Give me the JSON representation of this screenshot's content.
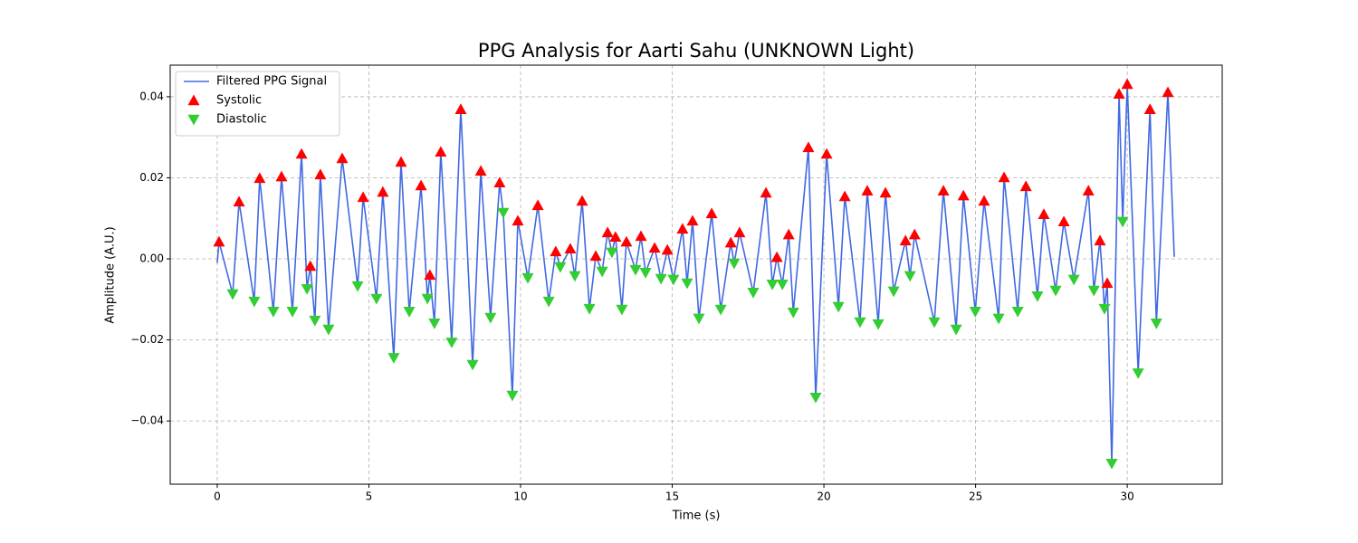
{
  "chart_data": {
    "type": "line",
    "title": "PPG Analysis for Aarti Sahu (UNKNOWN Light)",
    "xlabel": "Time (s)",
    "ylabel": "Amplitude (A.U.)",
    "xlim": [
      -1.55,
      33.13
    ],
    "ylim": [
      -0.0556,
      0.0478
    ],
    "xticks": [
      0,
      5,
      10,
      15,
      20,
      25,
      30
    ],
    "yticks": [
      {
        "value": -0.04,
        "label": "−0.04"
      },
      {
        "value": -0.02,
        "label": "−0.02"
      },
      {
        "value": 0,
        "label": "0.00"
      },
      0.02,
      0.04
    ],
    "grid": true,
    "legend": "upper left",
    "series": [
      {
        "name": "Filtered PPG Signal",
        "type": "line",
        "color": "#4169e1",
        "x": [
          0,
          0.06,
          0.51,
          0.72,
          1.22,
          1.4,
          1.85,
          2.12,
          2.48,
          2.78,
          2.96,
          3.07,
          3.22,
          3.4,
          3.67,
          4.12,
          4.63,
          4.81,
          5.25,
          5.46,
          5.82,
          6.06,
          6.33,
          6.72,
          6.93,
          7.01,
          7.16,
          7.37,
          7.73,
          8.03,
          8.42,
          8.69,
          9.01,
          9.31,
          9.43,
          9.73,
          9.91,
          10.24,
          10.57,
          10.93,
          11.16,
          11.31,
          11.64,
          11.79,
          12.03,
          12.27,
          12.48,
          12.69,
          12.87,
          13.01,
          13.13,
          13.34,
          13.49,
          13.79,
          13.97,
          14.12,
          14.42,
          14.63,
          14.84,
          15.04,
          15.34,
          15.49,
          15.67,
          15.88,
          16.3,
          16.6,
          16.93,
          17.04,
          17.22,
          17.67,
          18.09,
          18.3,
          18.45,
          18.63,
          18.84,
          18.99,
          19.49,
          19.73,
          20.09,
          20.48,
          20.69,
          21.19,
          21.43,
          21.79,
          22.03,
          22.3,
          22.69,
          22.84,
          22.99,
          23.64,
          23.94,
          24.36,
          24.6,
          24.99,
          25.28,
          25.76,
          25.94,
          26.39,
          26.66,
          27.04,
          27.25,
          27.64,
          27.91,
          28.24,
          28.72,
          28.9,
          29.1,
          29.25,
          29.34,
          29.49,
          29.73,
          29.85,
          30,
          30.36,
          30.75,
          30.96,
          31.34,
          31.55
        ],
        "values": [
          -0.001,
          0.0042,
          -0.0087,
          0.0141,
          -0.0105,
          0.0199,
          -0.013,
          0.0203,
          -0.013,
          0.0259,
          -0.0074,
          -0.0018,
          -0.0152,
          0.0208,
          -0.0174,
          0.0248,
          -0.0067,
          0.0152,
          -0.0098,
          0.0165,
          -0.0244,
          0.0239,
          -0.013,
          0.0181,
          -0.0098,
          -0.004,
          -0.0159,
          0.0264,
          -0.0206,
          0.0369,
          -0.0261,
          0.0217,
          -0.0145,
          0.0188,
          0.0114,
          -0.0337,
          0.0094,
          -0.0047,
          0.0132,
          -0.0105,
          0.0018,
          -0.002,
          0.0025,
          -0.0042,
          0.0143,
          -0.0123,
          0.0007,
          -0.0031,
          0.0065,
          0.0016,
          0.0054,
          -0.0125,
          0.0042,
          -0.0027,
          0.0056,
          -0.0034,
          0.0027,
          -0.0049,
          0.0022,
          -0.0051,
          0.0074,
          -0.006,
          0.0094,
          -0.0147,
          0.0112,
          -0.0125,
          0.004,
          -0.0011,
          0.0065,
          -0.0083,
          0.0163,
          -0.0063,
          0.0004,
          -0.0063,
          0.006,
          -0.0132,
          0.0275,
          -0.0342,
          0.0259,
          -0.0118,
          0.0154,
          -0.0156,
          0.0168,
          -0.0161,
          0.0163,
          -0.008,
          0.0045,
          -0.0042,
          0.006,
          -0.0156,
          0.0168,
          -0.0174,
          0.0156,
          -0.013,
          0.0143,
          -0.0147,
          0.0201,
          -0.013,
          0.0179,
          -0.0092,
          0.011,
          -0.0078,
          0.0092,
          -0.0051,
          0.0168,
          -0.0078,
          0.0045,
          -0.0123,
          -0.006,
          -0.0505,
          0.0407,
          0.0092,
          0.0431,
          -0.0282,
          0.0369,
          -0.0159,
          0.0411,
          0.0005
        ]
      },
      {
        "name": "Systolic",
        "type": "scatter",
        "marker": "triangle-up",
        "color": "#ff0000",
        "x": [
          0.06,
          0.72,
          1.4,
          2.12,
          2.78,
          3.07,
          3.4,
          4.12,
          4.81,
          5.46,
          6.06,
          6.72,
          7.01,
          7.37,
          8.03,
          8.69,
          9.31,
          9.91,
          10.57,
          11.16,
          11.64,
          12.03,
          12.48,
          12.87,
          13.13,
          13.49,
          13.97,
          14.42,
          14.84,
          15.34,
          15.67,
          16.3,
          16.93,
          17.22,
          18.09,
          18.45,
          18.84,
          19.49,
          20.09,
          20.69,
          21.43,
          22.03,
          22.69,
          22.99,
          23.94,
          24.6,
          25.28,
          25.94,
          26.66,
          27.25,
          27.91,
          28.72,
          29.1,
          29.34,
          29.73,
          30,
          30.75,
          31.34
        ],
        "values": [
          0.0042,
          0.0141,
          0.0199,
          0.0203,
          0.0259,
          -0.0018,
          0.0208,
          0.0248,
          0.0152,
          0.0165,
          0.0239,
          0.0181,
          -0.004,
          0.0264,
          0.0369,
          0.0217,
          0.0188,
          0.0094,
          0.0132,
          0.0018,
          0.0025,
          0.0143,
          0.0007,
          0.0065,
          0.0054,
          0.0042,
          0.0056,
          0.0027,
          0.0022,
          0.0074,
          0.0094,
          0.0112,
          0.004,
          0.0065,
          0.0163,
          0.0004,
          0.006,
          0.0275,
          0.0259,
          0.0154,
          0.0168,
          0.0163,
          0.0045,
          0.006,
          0.0168,
          0.0156,
          0.0143,
          0.0201,
          0.0179,
          0.011,
          0.0092,
          0.0168,
          0.0045,
          -0.006,
          0.0407,
          0.0431,
          0.0369,
          0.0411
        ]
      },
      {
        "name": "Diastolic",
        "type": "scatter",
        "marker": "triangle-down",
        "color": "#32cd32",
        "x": [
          0.51,
          1.22,
          1.85,
          2.48,
          2.96,
          3.22,
          3.67,
          4.63,
          5.25,
          5.82,
          6.33,
          6.93,
          7.16,
          7.73,
          8.42,
          9.01,
          9.43,
          9.73,
          10.24,
          10.93,
          11.31,
          11.79,
          12.27,
          12.69,
          13.01,
          13.34,
          13.79,
          14.12,
          14.63,
          15.04,
          15.49,
          15.88,
          16.6,
          17.04,
          17.67,
          18.3,
          18.63,
          18.99,
          19.73,
          20.48,
          21.19,
          21.79,
          22.3,
          22.84,
          23.64,
          24.36,
          24.99,
          25.76,
          26.39,
          27.04,
          27.64,
          28.24,
          28.9,
          29.25,
          29.49,
          29.85,
          30.36,
          30.96
        ],
        "values": [
          -0.0087,
          -0.0105,
          -0.013,
          -0.013,
          -0.0074,
          -0.0152,
          -0.0174,
          -0.0067,
          -0.0098,
          -0.0244,
          -0.013,
          -0.0098,
          -0.0159,
          -0.0206,
          -0.0261,
          -0.0145,
          0.0114,
          -0.0337,
          -0.0047,
          -0.0105,
          -0.002,
          -0.0042,
          -0.0123,
          -0.0031,
          0.0016,
          -0.0125,
          -0.0027,
          -0.0034,
          -0.0049,
          -0.0051,
          -0.006,
          -0.0147,
          -0.0125,
          -0.0011,
          -0.0083,
          -0.0063,
          -0.0063,
          -0.0132,
          -0.0342,
          -0.0118,
          -0.0156,
          -0.0161,
          -0.008,
          -0.0042,
          -0.0156,
          -0.0174,
          -0.013,
          -0.0147,
          -0.013,
          -0.0092,
          -0.0078,
          -0.0051,
          -0.0078,
          -0.0123,
          -0.0505,
          0.0092,
          -0.0282,
          -0.0159
        ]
      }
    ]
  }
}
